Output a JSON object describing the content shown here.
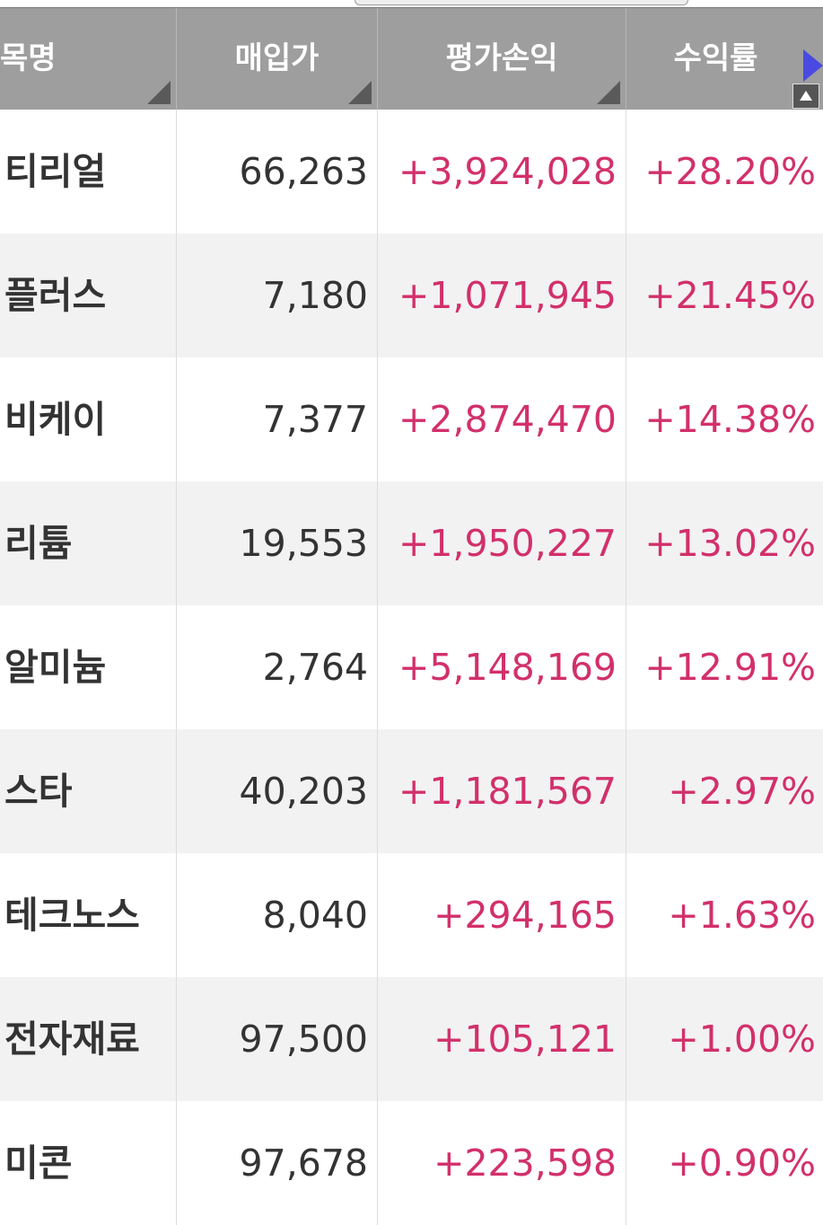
{
  "table": {
    "headers": [
      "목명",
      "매입가",
      "평가손익",
      "수익률"
    ],
    "rows": [
      [
        "티리얼",
        "66,263",
        "+3,924,028",
        "+28.20%"
      ],
      [
        "플러스",
        "7,180",
        "+1,071,945",
        "+21.45%"
      ],
      [
        "비케이",
        "7,377",
        "+2,874,470",
        "+14.38%"
      ],
      [
        "리튬",
        "19,553",
        "+1,950,227",
        "+13.02%"
      ],
      [
        "알미늄",
        "2,764",
        "+5,148,169",
        "+12.91%"
      ],
      [
        "스타",
        "40,203",
        "+1,181,567",
        "+2.97%"
      ],
      [
        "테크노스",
        "8,040",
        "+294,165",
        "+1.63%"
      ],
      [
        "전자재료",
        "97,500",
        "+105,121",
        "+1.00%"
      ],
      [
        "미콘",
        "97,678",
        "+223,598",
        "+0.90%"
      ]
    ]
  }
}
